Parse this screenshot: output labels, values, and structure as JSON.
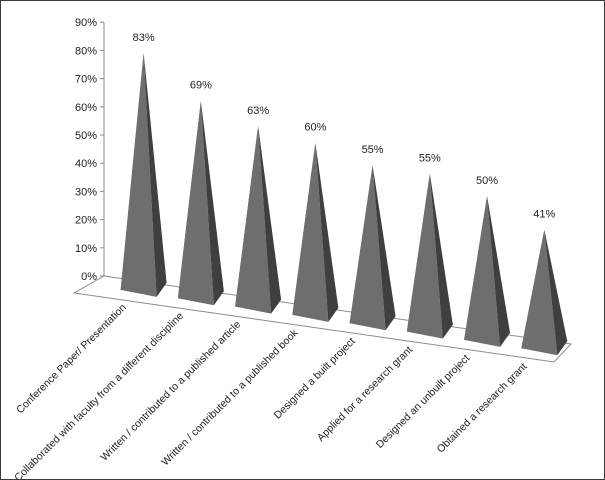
{
  "chart_data": {
    "type": "bar",
    "subtype": "3d-pyramid",
    "title": "",
    "xlabel": "",
    "ylabel": "",
    "ylim": [
      0,
      90
    ],
    "yticks": [
      0,
      10,
      20,
      30,
      40,
      50,
      60,
      70,
      80,
      90
    ],
    "ytick_labels": [
      "0%",
      "10%",
      "20%",
      "30%",
      "40%",
      "50%",
      "60%",
      "70%",
      "80%",
      "90%"
    ],
    "categories": [
      "Conference Paper/ Presentation",
      "Collaborated with faculty from a different discipline",
      "Written / contributed to a published article",
      "Written / contributed to a published book",
      "Designed a built project",
      "Applied for a research grant",
      "Designed an unbuilt project",
      "Obtained a research grant"
    ],
    "values": [
      83,
      69,
      63,
      60,
      55,
      55,
      50,
      41
    ],
    "data_labels": [
      "83%",
      "69%",
      "63%",
      "60%",
      "55%",
      "55%",
      "50%",
      "41%"
    ],
    "grid": false,
    "legend": "none",
    "colors": {
      "pyramid_front": "#6e6e6e",
      "pyramid_left": "#8a8a8a",
      "pyramid_right": "#3f3f3f",
      "axis": "#8c8c8c"
    }
  }
}
